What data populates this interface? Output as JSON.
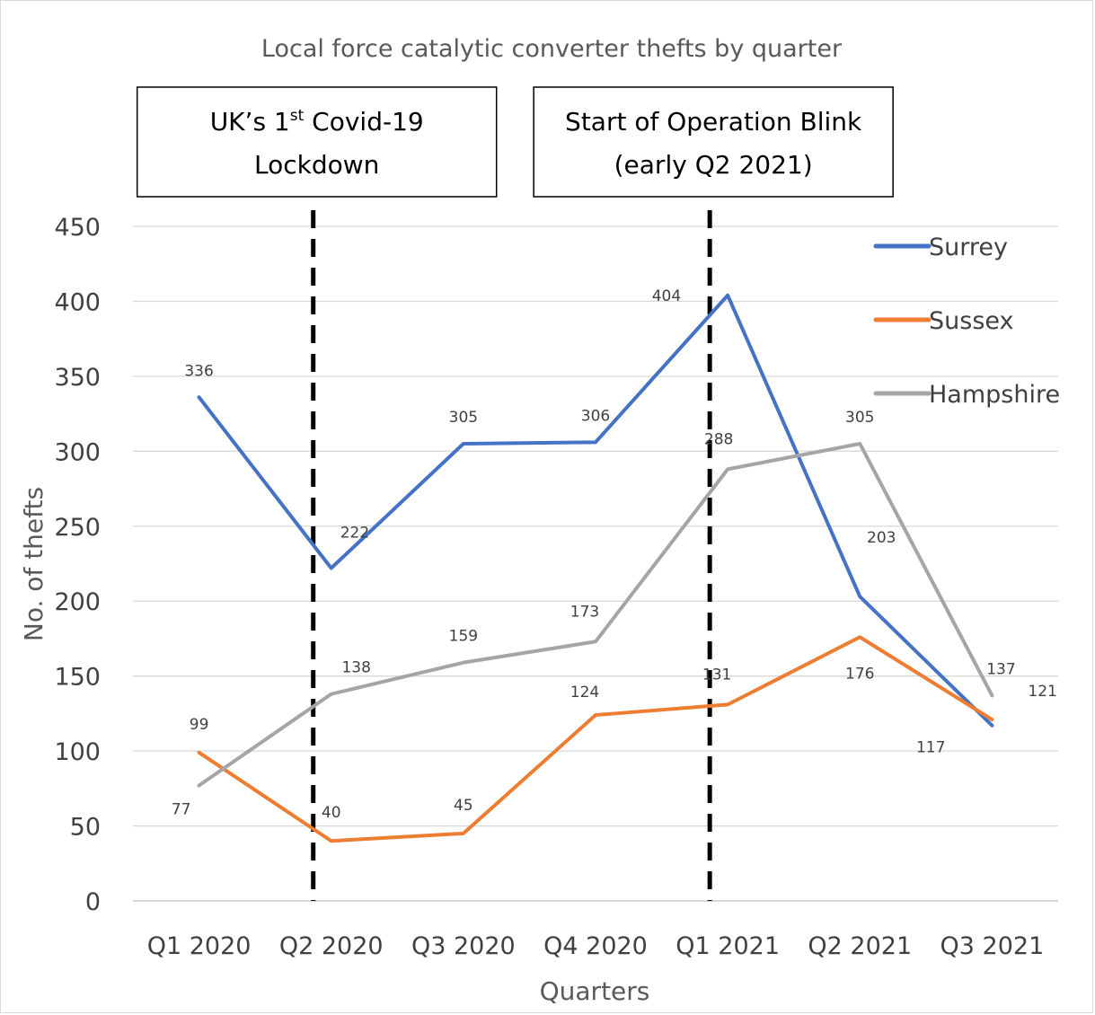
{
  "chart_data": {
    "type": "line",
    "title": "Local force catalytic converter thefts by quarter",
    "xlabel": "Quarters",
    "ylabel": "No. of thefts",
    "categories": [
      "Q1 2020",
      "Q2 2020",
      "Q3 2020",
      "Q4 2020",
      "Q1 2021",
      "Q2 2021",
      "Q3 2021"
    ],
    "ylim": [
      0,
      450
    ],
    "yticks": [
      "0",
      "50",
      "100",
      "150",
      "200",
      "250",
      "300",
      "350",
      "400",
      "450"
    ],
    "grid": "horizontal",
    "legend_position": "top-right",
    "series": [
      {
        "name": "Surrey",
        "color": "#4472c4",
        "values": [
          336,
          222,
          305,
          306,
          404,
          203,
          117
        ]
      },
      {
        "name": "Sussex",
        "color": "#ed7d31",
        "values": [
          99,
          40,
          45,
          124,
          131,
          176,
          121
        ]
      },
      {
        "name": "Hampshire",
        "color": "#a5a5a5",
        "values": [
          77,
          138,
          159,
          173,
          288,
          305,
          137
        ]
      }
    ],
    "annotations": [
      {
        "category_index": 1,
        "line1_pre": "UK’s 1",
        "line1_sup": "st",
        "line1_post": " Covid-19",
        "line2": "Lockdown"
      },
      {
        "category_index": 4,
        "line1_pre": "Start of Operation Blink",
        "line1_sup": "",
        "line1_post": "",
        "line2": "(early Q2 2021)"
      }
    ]
  }
}
